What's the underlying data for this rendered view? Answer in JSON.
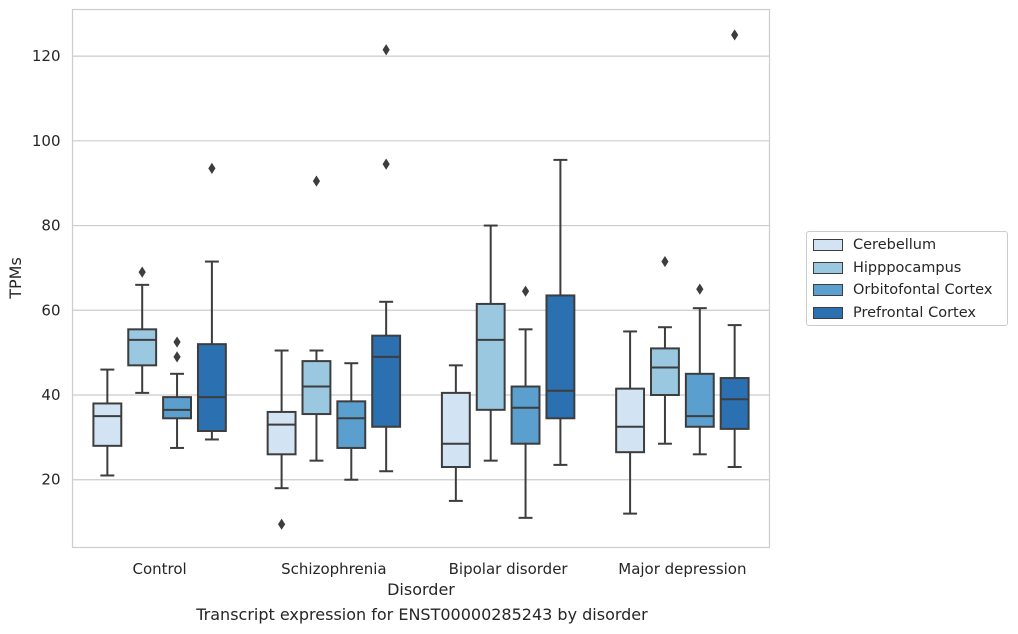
{
  "chart_data": {
    "type": "box",
    "xlabel": "Disorder",
    "ylabel": "TPMs",
    "caption": "Transcript expression for ENST00000285243 by disorder",
    "categories": [
      "Control",
      "Schizophrenia",
      "Bipolar disorder",
      "Major depression"
    ],
    "ylim": [
      4,
      131
    ],
    "yticks": [
      20,
      40,
      60,
      80,
      100,
      120
    ],
    "grid": "horizontal",
    "legend_position": "right",
    "series": [
      {
        "name": "Cerebellum",
        "color": "#d2e3f3",
        "boxes": [
          {
            "whislo": 21,
            "q1": 28,
            "median": 35,
            "q3": 38,
            "whishi": 46,
            "fliers": []
          },
          {
            "whislo": 18,
            "q1": 26,
            "median": 33,
            "q3": 36,
            "whishi": 50.5,
            "fliers": [
              9.5
            ]
          },
          {
            "whislo": 15,
            "q1": 23,
            "median": 28.5,
            "q3": 40.5,
            "whishi": 47,
            "fliers": []
          },
          {
            "whislo": 12,
            "q1": 26.5,
            "median": 32.5,
            "q3": 41.5,
            "whishi": 55,
            "fliers": []
          }
        ]
      },
      {
        "name": "Hipppocampus",
        "color": "#9ac8e0",
        "boxes": [
          {
            "whislo": 40.5,
            "q1": 47,
            "median": 53,
            "q3": 55.5,
            "whishi": 66,
            "fliers": [
              69
            ]
          },
          {
            "whislo": 24.5,
            "q1": 35.5,
            "median": 42,
            "q3": 48,
            "whishi": 50.5,
            "fliers": [
              90.5
            ]
          },
          {
            "whislo": 24.5,
            "q1": 36.5,
            "median": 53,
            "q3": 61.5,
            "whishi": 80,
            "fliers": []
          },
          {
            "whislo": 28.5,
            "q1": 40,
            "median": 46.5,
            "q3": 51,
            "whishi": 56,
            "fliers": [
              71.5
            ]
          }
        ]
      },
      {
        "name": "Orbitofontal Cortex",
        "color": "#5a9fcd",
        "boxes": [
          {
            "whislo": 27.5,
            "q1": 34.5,
            "median": 36.5,
            "q3": 39.5,
            "whishi": 45,
            "fliers": [
              49,
              52.5
            ]
          },
          {
            "whislo": 20,
            "q1": 27.5,
            "median": 34.5,
            "q3": 38.5,
            "whishi": 47.5,
            "fliers": []
          },
          {
            "whislo": 11,
            "q1": 28.5,
            "median": 37,
            "q3": 42,
            "whishi": 55.5,
            "fliers": [
              64.5
            ]
          },
          {
            "whislo": 26,
            "q1": 32.5,
            "median": 35,
            "q3": 45,
            "whishi": 60.5,
            "fliers": [
              65
            ]
          }
        ]
      },
      {
        "name": "Prefrontal Cortex",
        "color": "#2b70b0",
        "boxes": [
          {
            "whislo": 29.5,
            "q1": 31.5,
            "median": 39.5,
            "q3": 52,
            "whishi": 71.5,
            "fliers": [
              93.5
            ]
          },
          {
            "whislo": 22,
            "q1": 32.5,
            "median": 49,
            "q3": 54,
            "whishi": 62,
            "fliers": [
              94.5,
              121.5
            ]
          },
          {
            "whislo": 23.5,
            "q1": 34.5,
            "median": 41,
            "q3": 63.5,
            "whishi": 95.5,
            "fliers": []
          },
          {
            "whislo": 23,
            "q1": 32,
            "median": 39,
            "q3": 44,
            "whishi": 56.5,
            "fliers": [
              125
            ]
          }
        ]
      }
    ]
  }
}
